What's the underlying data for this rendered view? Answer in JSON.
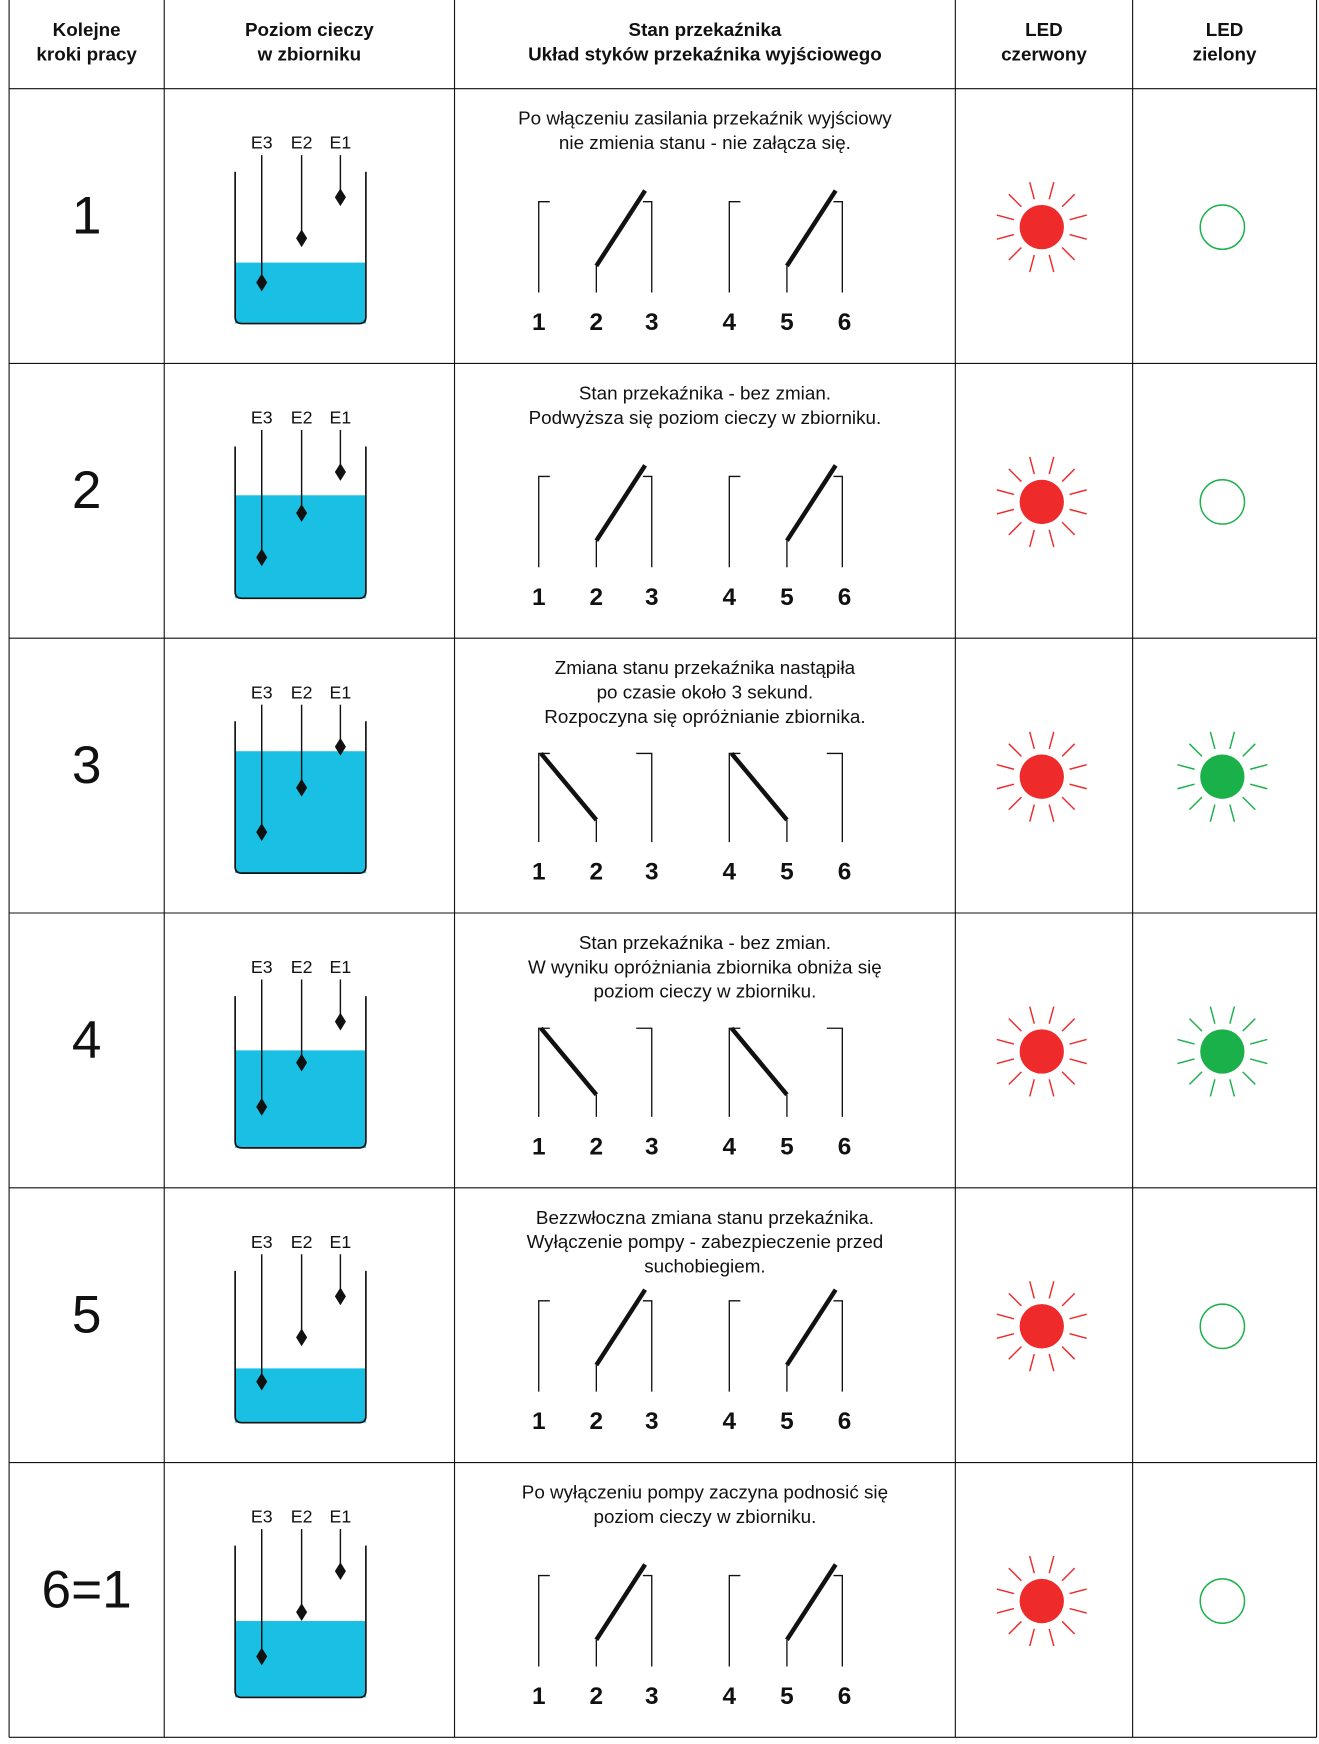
{
  "header": [
    "Kolejne\nkroki pracy",
    "Poziom cieczy\nw zbiorniku",
    "Stan przekaźnika\nUkład styków przekaźnika wyjściowego",
    "LED\nczerwony",
    "LED\nzielony"
  ],
  "electrode_labels": [
    "E3",
    "E2",
    "E1"
  ],
  "contact_labels": [
    "1",
    "2",
    "3",
    "4",
    "5",
    "6"
  ],
  "rows": [
    {
      "step": "1",
      "description": [
        "Po włączeniu zasilania przekaźnik wyjściowy",
        "nie zmienia stanu - nie załącza się."
      ]
    },
    {
      "step": "2",
      "description": [
        "Stan przekaźnika - bez zmian.",
        "Podwyższa się poziom cieczy w zbiorniku."
      ]
    },
    {
      "step": "3",
      "description": [
        "Zmiana stanu przekaźnika nastąpiła",
        "po czasie około 3 sekund.",
        "Rozpoczyna się opróżnianie zbiornika."
      ]
    },
    {
      "step": "4",
      "description": [
        "Stan przekaźnika - bez zmian.",
        "W wyniku opróżniania zbiornika obniża się",
        "poziom cieczy w zbiorniku."
      ]
    },
    {
      "step": "5",
      "description": [
        "Bezzwłoczna zmiana stanu przekaźnika.",
        "Wyłączenie pompy - zabezpieczenie przed",
        "suchobiegiem."
      ]
    },
    {
      "step": "6=1",
      "description": [
        "Po wyłączeniu pompy zaczyna podnosić się",
        "poziom cieczy w zbiorniku."
      ]
    }
  ]
}
